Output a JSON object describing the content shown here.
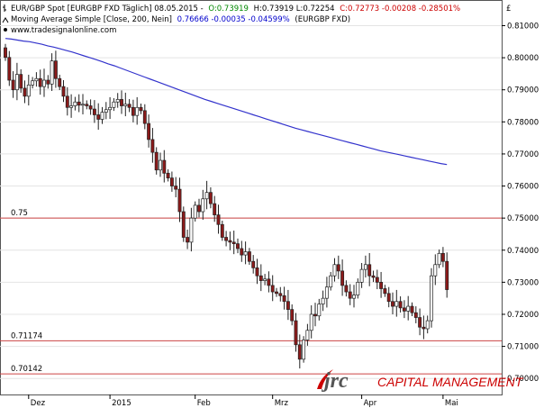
{
  "header": {
    "line1_prefix": "EUR/GBP Spot [EURGBP FXD  Täglich] 08.05.2015 -",
    "line1_open": "O:0.73919",
    "line1_hl": "H:0.73919 L:0.72254",
    "line1_close": "C:0.72773 -0.00208 -0.28501%",
    "line2_prefix": "Moving Average Simple [Close, 200, Nein]",
    "line2_value": "0.76666 -0.00035 -0.04599%",
    "line2_suffix": "(EURGBP FXD)",
    "line3": "www.tradesignalonline.com"
  },
  "currency_label": "£",
  "brand": {
    "logo_text": "jrc",
    "tagline": "CAPITAL MANAGEMENT"
  },
  "colors": {
    "candle_up": "#ffffff",
    "candle_down": "#8b1a1a",
    "sma": "#3333cc",
    "level": "#cc4444",
    "accent": "#cc0000",
    "text_blue": "#0000cc",
    "text_green": "#008800",
    "text_red": "#cc0000"
  },
  "chart_data": {
    "type": "candlestick",
    "symbol": "EUR/GBP",
    "ylim": [
      0.695,
      0.818
    ],
    "y_ticks": [
      "0.70000",
      "0.71000",
      "0.72000",
      "0.73000",
      "0.74000",
      "0.75000",
      "0.76000",
      "0.77000",
      "0.78000",
      "0.79000",
      "0.80000",
      "0.81000"
    ],
    "x_ticks": [
      {
        "label": "Dez",
        "index": 6
      },
      {
        "label": "2015",
        "index": 27
      },
      {
        "label": "Feb",
        "index": 49
      },
      {
        "label": "Mrz",
        "index": 69
      },
      {
        "label": "Apr",
        "index": 92
      },
      {
        "label": "Mai",
        "index": 113
      }
    ],
    "levels": [
      {
        "label": "0.75",
        "value": 0.75
      },
      {
        "label": "0.71174",
        "value": 0.71174
      },
      {
        "label": "0.70142",
        "value": 0.70142
      }
    ],
    "close": [
      0.8001,
      0.793,
      0.79,
      0.7948,
      0.7905,
      0.788,
      0.7915,
      0.7928,
      0.7935,
      0.791,
      0.793,
      0.7918,
      0.799,
      0.7935,
      0.791,
      0.788,
      0.7845,
      0.785,
      0.7862,
      0.7852,
      0.7855,
      0.785,
      0.784,
      0.7822,
      0.7808,
      0.783,
      0.7838,
      0.7845,
      0.7862,
      0.787,
      0.785,
      0.7855,
      0.7845,
      0.782,
      0.7845,
      0.7835,
      0.7795,
      0.7745,
      0.7705,
      0.765,
      0.768,
      0.764,
      0.7625,
      0.76,
      0.759,
      0.752,
      0.744,
      0.7425,
      0.75,
      0.754,
      0.752,
      0.756,
      0.758,
      0.7545,
      0.751,
      0.748,
      0.744,
      0.743,
      0.7425,
      0.742,
      0.7405,
      0.7385,
      0.7395,
      0.7365,
      0.7345,
      0.732,
      0.7305,
      0.731,
      0.729,
      0.727,
      0.7265,
      0.7258,
      0.724,
      0.7215,
      0.718,
      0.7105,
      0.706,
      0.712,
      0.715,
      0.72,
      0.7195,
      0.7232,
      0.725,
      0.7285,
      0.732,
      0.7355,
      0.7335,
      0.729,
      0.727,
      0.725,
      0.726,
      0.73,
      0.734,
      0.7355,
      0.732,
      0.7315,
      0.73,
      0.728,
      0.7265,
      0.724,
      0.7225,
      0.724,
      0.722,
      0.721,
      0.7225,
      0.7205,
      0.719,
      0.716,
      0.7155,
      0.718,
      0.732,
      0.7355,
      0.739,
      0.7365,
      0.7277
    ],
    "sma": [
      0.806,
      0.8058,
      0.8055,
      0.8052,
      0.805,
      0.8046,
      0.8042,
      0.8037,
      0.8033,
      0.8028,
      0.8023,
      0.8018,
      0.8012,
      0.8006,
      0.8,
      0.7994,
      0.7988,
      0.7981,
      0.7975,
      0.7968,
      0.7961,
      0.7954,
      0.7947,
      0.794,
      0.7933,
      0.7926,
      0.7919,
      0.7912,
      0.7905,
      0.7898,
      0.7891,
      0.7884,
      0.7877,
      0.787,
      0.7864,
      0.7858,
      0.7852,
      0.7846,
      0.784,
      0.7834,
      0.7828,
      0.7822,
      0.7816,
      0.781,
      0.7804,
      0.7798,
      0.7792,
      0.7786,
      0.778,
      0.7775,
      0.777,
      0.7765,
      0.776,
      0.7755,
      0.775,
      0.7745,
      0.774,
      0.7735,
      0.773,
      0.7725,
      0.772,
      0.7715,
      0.771,
      0.7706,
      0.7702,
      0.7698,
      0.7694,
      0.769,
      0.7686,
      0.7682,
      0.7678,
      0.7674,
      0.767,
      0.7667
    ]
  }
}
